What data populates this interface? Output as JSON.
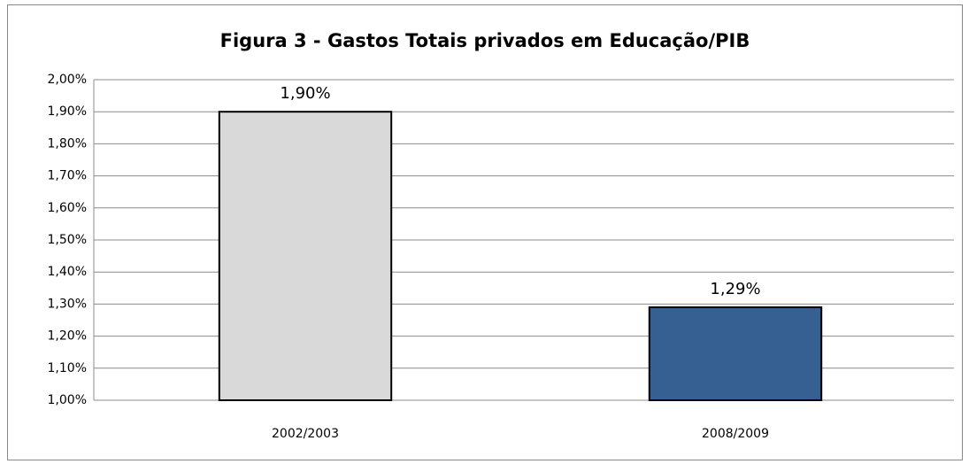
{
  "chart_data": {
    "type": "bar",
    "title": "Figura 3 - Gastos Totais privados em Educação/PIB",
    "categories": [
      "2002/2003",
      "2008/2009"
    ],
    "values": [
      1.9,
      1.29
    ],
    "value_labels": [
      "1,90%",
      "1,29%"
    ],
    "colors": [
      "#d9d9d9",
      "#376092"
    ],
    "ylim": [
      1.0,
      2.0
    ],
    "yticks": [
      {
        "value": 1.0,
        "label": "1,00%"
      },
      {
        "value": 1.1,
        "label": "1,10%"
      },
      {
        "value": 1.2,
        "label": "1,20%"
      },
      {
        "value": 1.3,
        "label": "1,30%"
      },
      {
        "value": 1.4,
        "label": "1,40%"
      },
      {
        "value": 1.5,
        "label": "1,50%"
      },
      {
        "value": 1.6,
        "label": "1,60%"
      },
      {
        "value": 1.7,
        "label": "1,70%"
      },
      {
        "value": 1.8,
        "label": "1,80%"
      },
      {
        "value": 1.9,
        "label": "1,90%"
      },
      {
        "value": 2.0,
        "label": "2,00%"
      }
    ],
    "grid": true
  }
}
